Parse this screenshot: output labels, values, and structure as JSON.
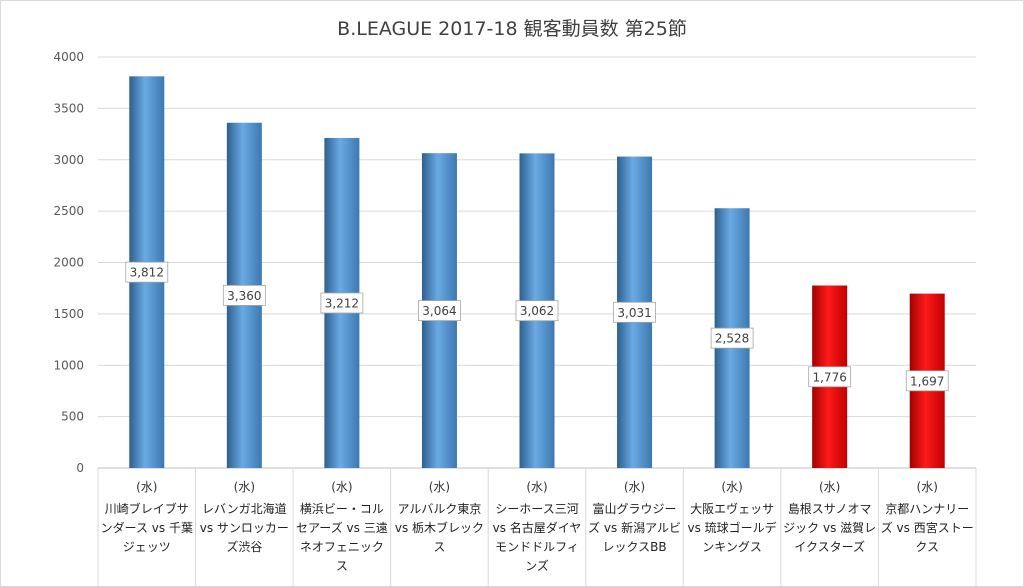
{
  "chart_data": {
    "type": "bar",
    "title": "B.LEAGUE 2017-18 観客動員数 第25節",
    "ylim": [
      0,
      4000
    ],
    "yticks": [
      0,
      500,
      1000,
      1500,
      2000,
      2500,
      3000,
      3500,
      4000
    ],
    "grid": true,
    "categories": [
      {
        "day": "(水)",
        "label": "川崎ブレイブサンダース vs 千葉ジェッツ"
      },
      {
        "day": "(水)",
        "label": "レバンガ北海道 vs サンロッカーズ渋谷"
      },
      {
        "day": "(水)",
        "label": "横浜ビー・コルセアーズ vs 三遠ネオフェニックス"
      },
      {
        "day": "(水)",
        "label": "アルバルク東京 vs 栃木ブレックス"
      },
      {
        "day": "(水)",
        "label": "シーホース三河 vs 名古屋ダイヤモンドドルフィンズ"
      },
      {
        "day": "(水)",
        "label": "富山グラウジーズ vs 新潟アルビレックスBB"
      },
      {
        "day": "(水)",
        "label": "大阪エヴェッサ vs 琉球ゴールデンキングス"
      },
      {
        "day": "(水)",
        "label": "島根スサノオマジック vs 滋賀レイクスターズ"
      },
      {
        "day": "(水)",
        "label": "京都ハンナリーズ vs 西宮ストークス"
      }
    ],
    "values": [
      3812,
      3360,
      3212,
      3064,
      3062,
      3031,
      2528,
      1776,
      1697
    ],
    "data_labels": [
      "3,812",
      "3,360",
      "3,212",
      "3,064",
      "3,062",
      "3,031",
      "2,528",
      "1,776",
      "1,697"
    ],
    "bar_colors": [
      "#5b9bd5",
      "#5b9bd5",
      "#5b9bd5",
      "#5b9bd5",
      "#5b9bd5",
      "#5b9bd5",
      "#5b9bd5",
      "#ff0000",
      "#ff0000"
    ]
  },
  "colors": {
    "blue_bar": "#5b9bd5",
    "red_bar": "#ff0000",
    "grid": "#d9d9d9",
    "text": "#404040"
  }
}
